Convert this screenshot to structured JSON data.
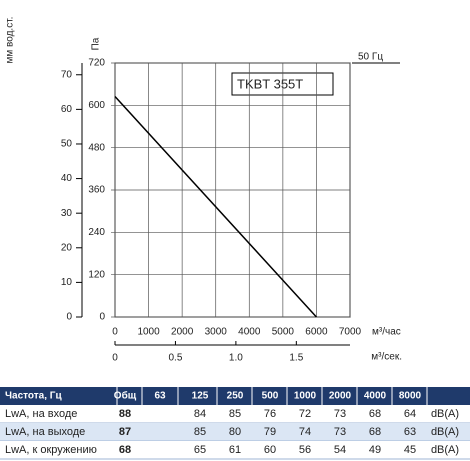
{
  "chart_data": {
    "type": "line",
    "title": "TKBT 355T",
    "annotation": "50 Гц",
    "y_label": "Па",
    "y2_label": "мм вод.ст.",
    "x_label": "м³/час",
    "x2_label": "м³/сек.",
    "x": [
      0,
      6000
    ],
    "series": [
      {
        "name": "TKBT 355T",
        "color": "#000000",
        "values": [
          625,
          0
        ]
      }
    ],
    "xlim": [
      0,
      7000
    ],
    "xticks": [
      0,
      1000,
      2000,
      3000,
      4000,
      5000,
      6000,
      7000
    ],
    "ylim": [
      0,
      720
    ],
    "yticks": [
      0,
      120,
      240,
      360,
      480,
      600,
      720
    ],
    "y2lim": [
      0,
      73.4
    ],
    "y2ticks": [
      0,
      10,
      20,
      30,
      40,
      50,
      60,
      70
    ],
    "x2lim": [
      0,
      1.944
    ],
    "x2ticks": [
      0,
      0.5,
      {
        "value": 1,
        "label": "1.0"
      },
      1.5
    ],
    "grid": true
  },
  "table": {
    "header": [
      "Частота, Гц",
      "Общ",
      "63",
      "125",
      "250",
      "500",
      "1000",
      "2000",
      "4000",
      "8000"
    ],
    "rows": [
      {
        "label": "LwA, на входе",
        "total": 88,
        "bands": [
          null,
          84,
          85,
          76,
          72,
          73,
          68,
          64
        ],
        "unit": "dB(A)"
      },
      {
        "label": "LwA, на выходе",
        "total": 87,
        "bands": [
          null,
          85,
          80,
          79,
          74,
          73,
          68,
          63
        ],
        "unit": "dB(A)"
      },
      {
        "label": "LwA, к окружению",
        "total": 68,
        "bands": [
          null,
          65,
          61,
          60,
          56,
          54,
          49,
          45
        ],
        "unit": "dB(A)"
      }
    ]
  }
}
